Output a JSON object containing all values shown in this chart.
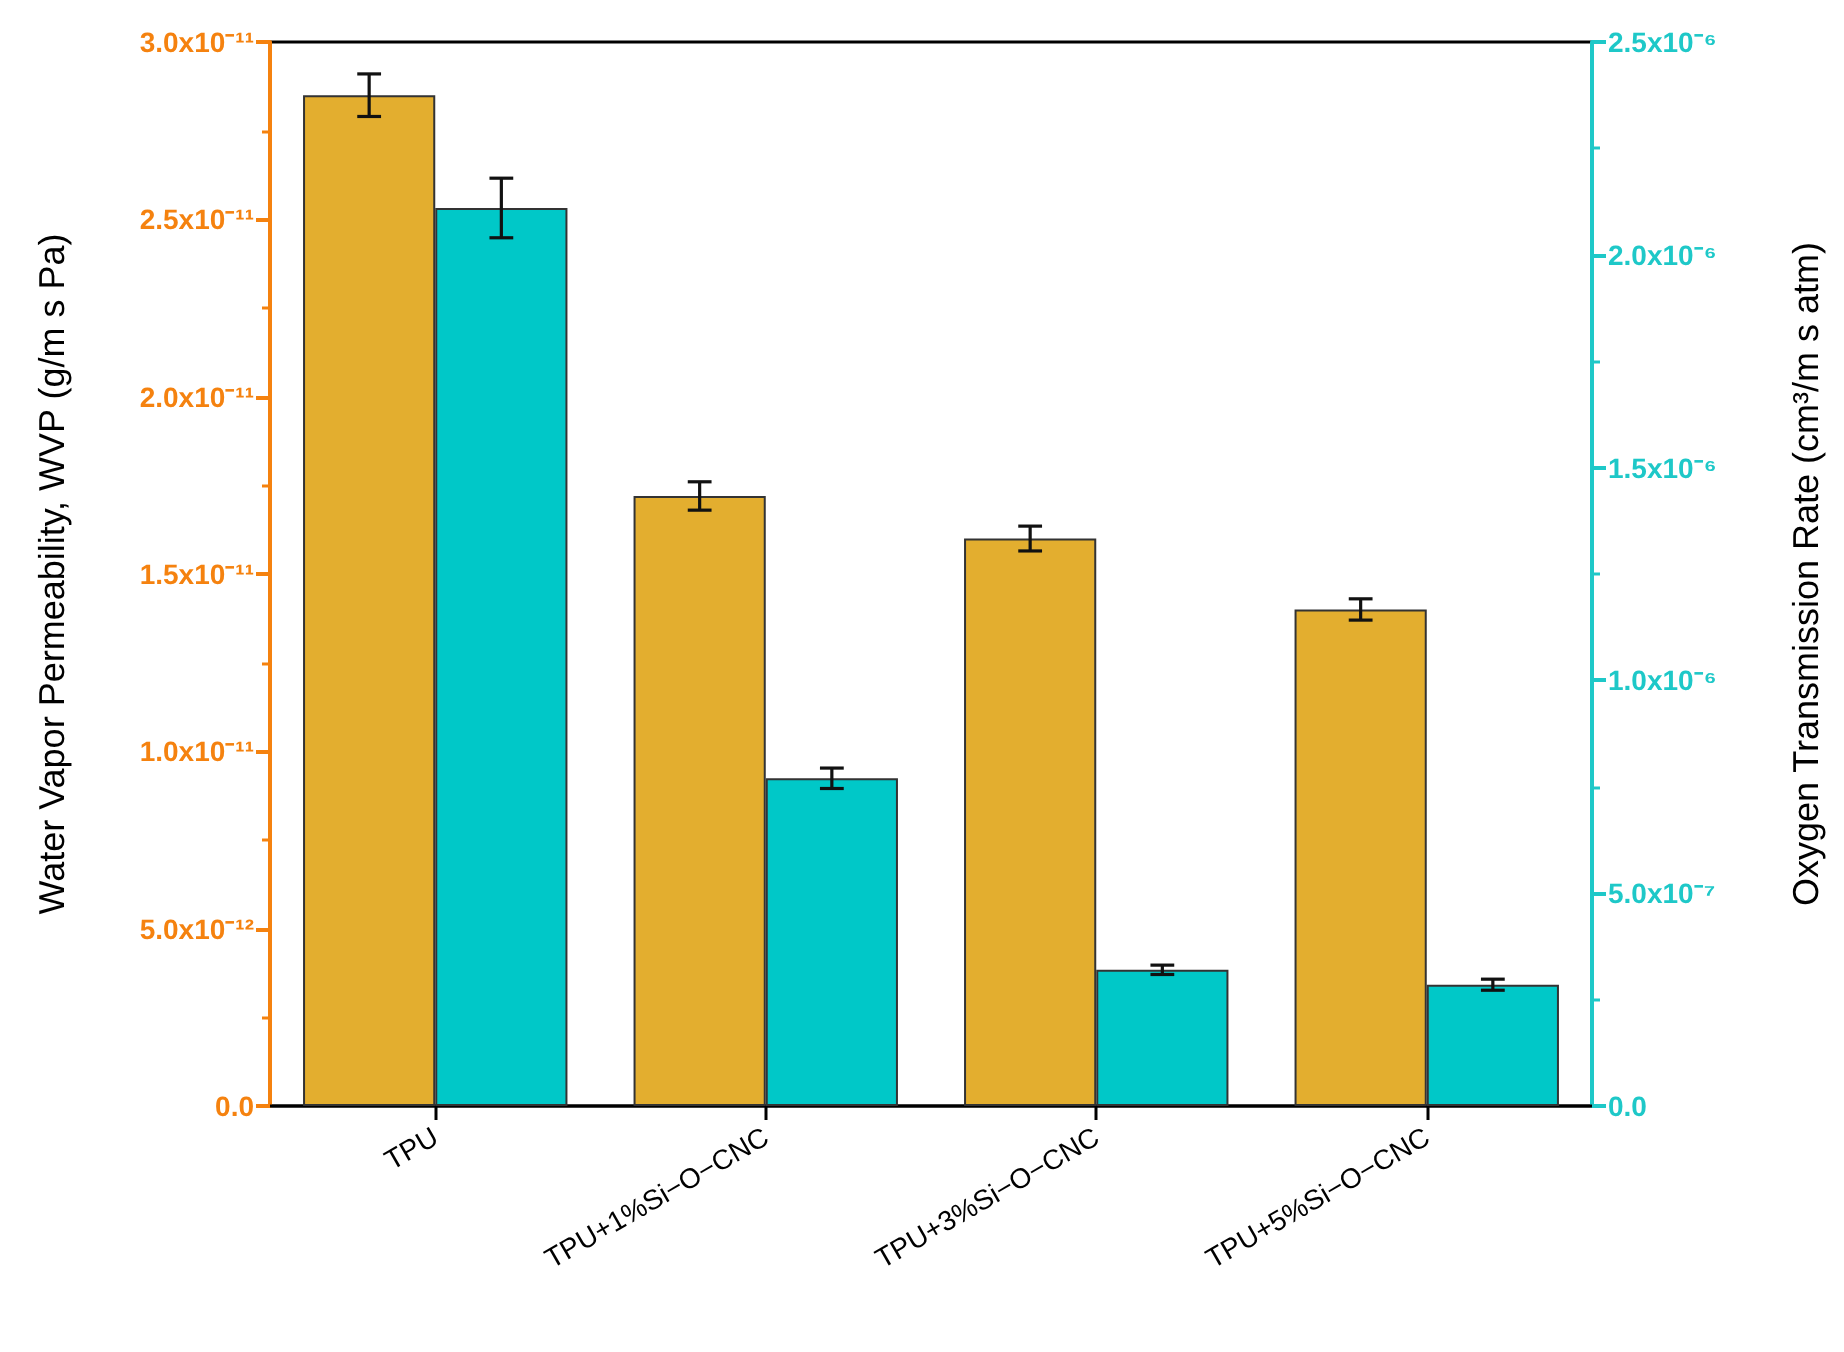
{
  "chart_data": {
    "type": "bar",
    "ylabel": "Water Vapor Permeability, WVP (g/m s Pa)",
    "y2label": "Oxygen Transmission Rate (cm³/m s atm)",
    "categories": [
      "TPU",
      "TPU+1%Si−O−CNC",
      "TPU+3%Si−O−CNC",
      "TPU+5%Si−O−CNC"
    ],
    "series": [
      {
        "color": "#e3ae2f",
        "values": [
          2.85e-11,
          1.72e-11,
          1.6e-11,
          1.4e-11
        ],
        "errors": [
          6e-13,
          4e-13,
          3.5e-13,
          3e-13
        ]
      },
      {
        "color": "#00c8c8",
        "axis": "y2",
        "values": [
          2.11e-06,
          7.7e-07,
          3.2e-07,
          2.85e-07
        ],
        "errors": [
          7e-08,
          2.4e-08,
          1.1e-08,
          1.3e-08
        ]
      }
    ],
    "ylim": [
      0,
      3e-11
    ],
    "yticks": [
      {
        "value": 0,
        "label": "0.0"
      },
      {
        "value": 5e-12,
        "label": "5.0x10⁻¹²"
      },
      {
        "value": 1e-11,
        "label": "1.0x10⁻¹¹"
      },
      {
        "value": 1.5e-11,
        "label": "1.5x10⁻¹¹"
      },
      {
        "value": 2e-11,
        "label": "2.0x10⁻¹¹"
      },
      {
        "value": 2.5e-11,
        "label": "2.5x10⁻¹¹"
      },
      {
        "value": 3e-11,
        "label": "3.0x10⁻¹¹"
      }
    ],
    "y2lim": [
      0,
      2.5e-06
    ],
    "y2ticks": [
      {
        "value": 0,
        "label": "0.0"
      },
      {
        "value": 5e-07,
        "label": "5.0x10⁻⁷"
      },
      {
        "value": 1e-06,
        "label": "1.0x10⁻⁶"
      },
      {
        "value": 1.5e-06,
        "label": "1.5x10⁻⁶"
      },
      {
        "value": 2e-06,
        "label": "2.0x10⁻⁶"
      },
      {
        "value": 2.5e-06,
        "label": "2.5x10⁻⁶"
      }
    ]
  }
}
